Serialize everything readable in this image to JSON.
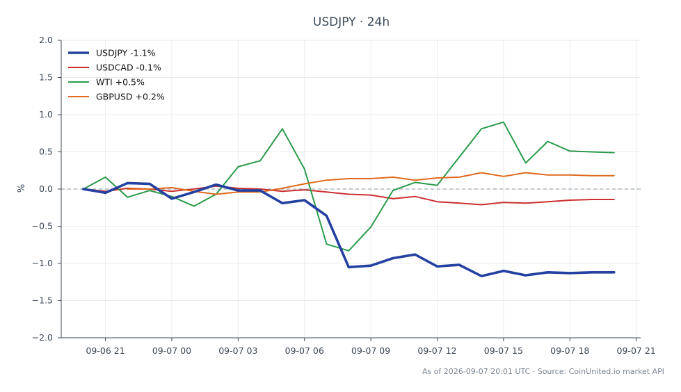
{
  "chart_data": {
    "type": "line",
    "title": "USDJPY · 24h",
    "xlabel": "",
    "ylabel": "%",
    "x_tick_labels": [
      "09-06 21",
      "09-07 00",
      "09-07 03",
      "09-07 06",
      "09-07 09",
      "09-07 12",
      "09-07 15",
      "09-07 18",
      "09-07 21"
    ],
    "x_ticks_hours": [
      21,
      24,
      27,
      30,
      33,
      36,
      39,
      42,
      45
    ],
    "xlim_hours": [
      19.0,
      45.2
    ],
    "y_ticks": [
      2.0,
      1.5,
      1.0,
      0.5,
      0.0,
      -0.5,
      -1.0,
      -1.5,
      -2.0
    ],
    "y_tick_labels": [
      "2.0",
      "1.5",
      "1.0",
      "0.5",
      "0.0",
      "−0.5",
      "−1.0",
      "−1.5",
      "−2.0"
    ],
    "ylim": [
      -2.0,
      2.0
    ],
    "grid": true,
    "zero_line": true,
    "legend_position": "top-left",
    "series": [
      {
        "name": "USDJPY -1.1%",
        "color": "#2440a0",
        "emphasis": true,
        "x_hours": [
          20,
          21,
          22,
          23,
          24,
          25,
          26,
          27,
          28,
          29,
          30,
          31,
          32,
          33,
          34,
          35,
          36,
          37,
          38,
          39,
          40,
          41,
          42,
          43,
          44
        ],
        "values": [
          0.0,
          -0.05,
          0.08,
          0.07,
          -0.13,
          -0.04,
          0.06,
          -0.02,
          -0.02,
          -0.19,
          -0.15,
          -0.36,
          -1.05,
          -1.03,
          -0.93,
          -0.88,
          -1.04,
          -1.02,
          -1.17,
          -1.1,
          -1.16,
          -1.12,
          -1.13,
          -1.12,
          -1.12
        ]
      },
      {
        "name": "USDCAD -0.1%",
        "color": "#cc3030",
        "emphasis": false,
        "x_hours": [
          20,
          21,
          22,
          23,
          24,
          25,
          26,
          27,
          28,
          29,
          30,
          31,
          32,
          33,
          34,
          35,
          36,
          37,
          38,
          39,
          40,
          41,
          42,
          43,
          44
        ],
        "values": [
          0.0,
          -0.03,
          0.01,
          0.0,
          -0.03,
          0.0,
          0.04,
          0.01,
          0.0,
          -0.03,
          -0.01,
          -0.04,
          -0.07,
          -0.08,
          -0.13,
          -0.1,
          -0.17,
          -0.19,
          -0.21,
          -0.18,
          -0.19,
          -0.17,
          -0.15,
          -0.14,
          -0.14
        ]
      },
      {
        "name": "WTI +0.5%",
        "color": "#2a9a4a",
        "emphasis": false,
        "x_hours": [
          20,
          21,
          22,
          23,
          24,
          25,
          26,
          27,
          28,
          29,
          30,
          31,
          32,
          33,
          34,
          35,
          36,
          37,
          38,
          39,
          40,
          41,
          42,
          43,
          44
        ],
        "values": [
          0.0,
          0.16,
          -0.11,
          -0.02,
          -0.1,
          -0.23,
          -0.07,
          0.3,
          0.38,
          0.81,
          0.27,
          -0.74,
          -0.83,
          -0.51,
          -0.02,
          0.09,
          0.05,
          0.43,
          0.81,
          0.9,
          0.35,
          0.64,
          0.51,
          0.5,
          0.49
        ]
      },
      {
        "name": "GBPUSD +0.2%",
        "color": "#e06a1e",
        "emphasis": false,
        "x_hours": [
          22,
          23,
          24,
          25,
          26,
          27,
          28,
          29,
          30,
          31,
          32,
          33,
          34,
          35,
          36,
          37,
          38,
          39,
          40,
          41,
          42,
          43,
          44
        ],
        "values": [
          0.0,
          0.0,
          0.02,
          -0.03,
          -0.07,
          -0.04,
          -0.04,
          0.01,
          0.07,
          0.12,
          0.14,
          0.14,
          0.16,
          0.12,
          0.15,
          0.16,
          0.22,
          0.17,
          0.22,
          0.19,
          0.19,
          0.18,
          0.18
        ]
      }
    ]
  },
  "footer": {
    "text": "As of 2026-09-07 20:01 UTC · Source: CoinUnited.io market API"
  }
}
